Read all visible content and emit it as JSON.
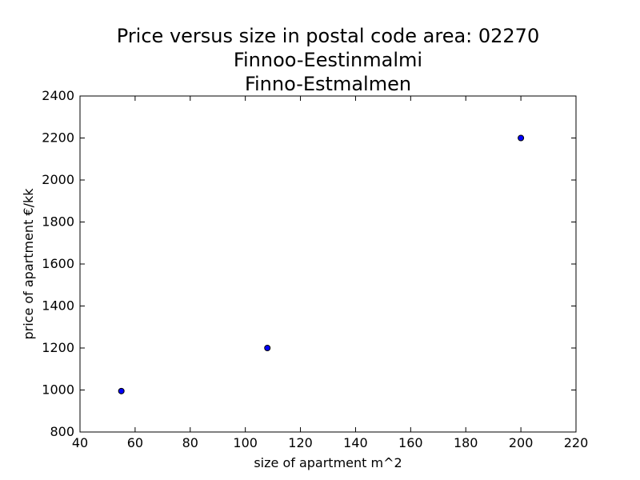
{
  "chart_data": {
    "type": "scatter",
    "title_lines": [
      "Price versus size in postal code area: 02270",
      "Finnoo-Eestinmalmi",
      "Finno-Estmalmen"
    ],
    "xlabel": "size of apartment m^2",
    "ylabel": "price of apartment €/kk",
    "xlim": [
      40,
      220
    ],
    "ylim": [
      800,
      2400
    ],
    "x_ticks": [
      "40",
      "60",
      "80",
      "100",
      "120",
      "140",
      "160",
      "180",
      "200",
      "220"
    ],
    "y_ticks": [
      "800",
      "1000",
      "1200",
      "1400",
      "1600",
      "1800",
      "2000",
      "2200",
      "2400"
    ],
    "grid": false,
    "points": [
      {
        "x": 55,
        "y": 995
      },
      {
        "x": 108,
        "y": 1200
      },
      {
        "x": 200,
        "y": 2200
      }
    ],
    "colors": {
      "point_fill": "#0000ff",
      "point_stroke": "#000000",
      "axes": "#000000"
    }
  }
}
